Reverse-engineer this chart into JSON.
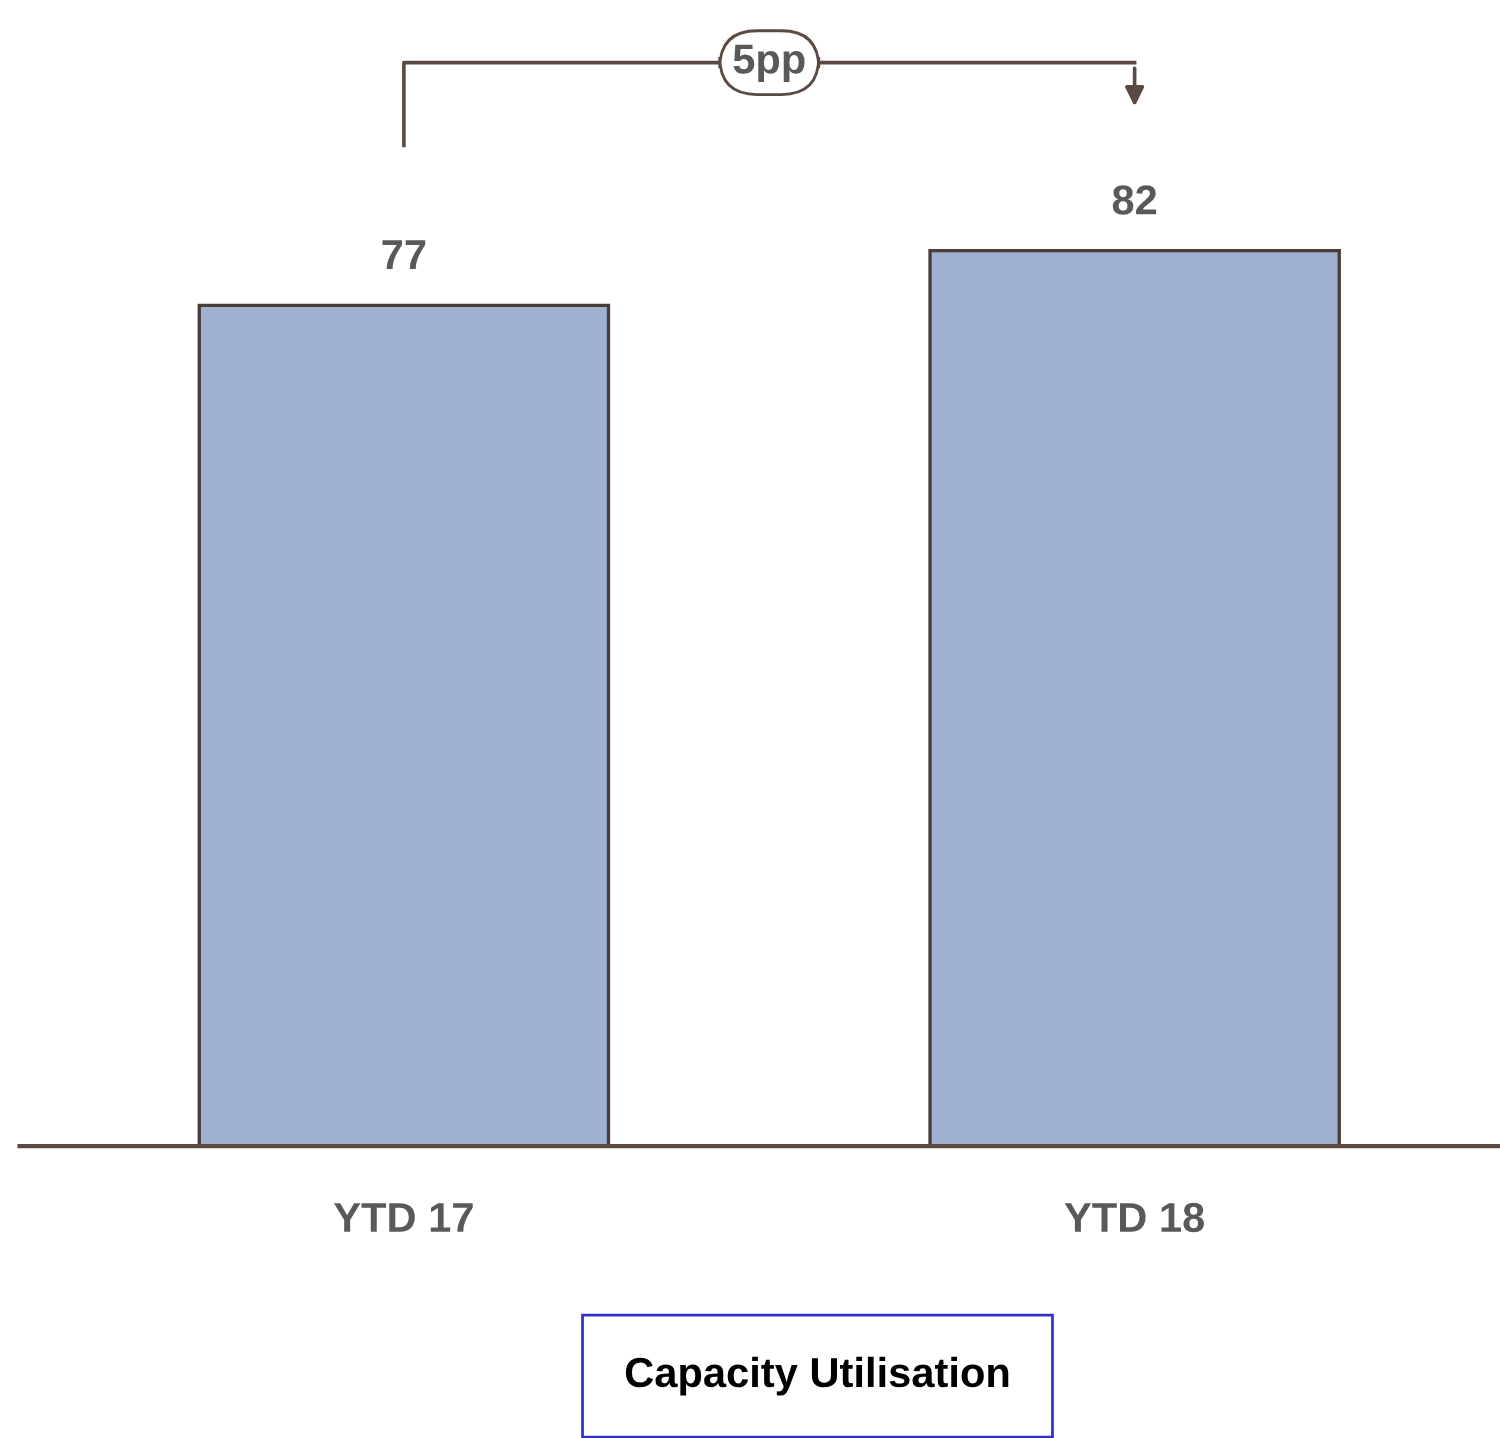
{
  "chart_data": {
    "type": "bar",
    "title": "Capacity Utilisation",
    "categories": [
      "YTD 17",
      "YTD 18"
    ],
    "values": [
      77,
      82
    ],
    "color": "#9eb1d0",
    "data_labels": true,
    "grid": false,
    "annotations": [
      "5pp"
    ]
  }
}
